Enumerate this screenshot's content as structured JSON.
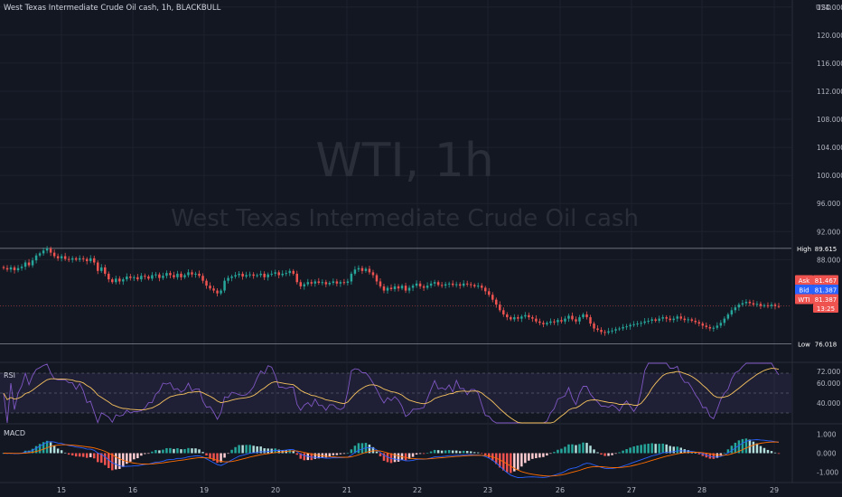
{
  "header": {
    "symbol_name": "West Texas Intermediate Crude Oil cash",
    "interval": "1h",
    "broker": "BLACKBULL",
    "title_full": "West Texas Intermediate Crude Oil cash, 1h, BLACKBULL"
  },
  "watermark": {
    "ticker_interval": "WTI, 1h",
    "name": "West Texas Intermediate Crude Oil cash"
  },
  "currency_label": "USD",
  "panes": {
    "rsi_label": "RSI",
    "macd_label": "MACD"
  },
  "chart_data": {
    "type": "candlestick",
    "x_tick_labels": [
      "15",
      "16",
      "19",
      "20",
      "21",
      "22",
      "23",
      "26",
      "27",
      "28",
      "29"
    ],
    "price_axis": {
      "ticks": [
        124,
        120,
        116,
        112,
        108,
        104,
        100,
        96,
        92,
        88
      ],
      "tick_labels": [
        "124.000",
        "120.000",
        "116.000",
        "112.000",
        "108.000",
        "104.000",
        "100.000",
        "96.000",
        "92.000",
        "88.000"
      ],
      "range": [
        73.5,
        125
      ]
    },
    "price_series": [
      86.8,
      86.6,
      86.9,
      86.5,
      86.8,
      87.0,
      87.6,
      87.2,
      87.9,
      88.6,
      88.9,
      89.3,
      89.6,
      89.0,
      88.5,
      88.2,
      88.5,
      88.1,
      88.0,
      88.2,
      88.0,
      88.2,
      88.1,
      87.8,
      88.2,
      87.6,
      86.4,
      86.9,
      86.0,
      85.2,
      84.8,
      85.3,
      84.9,
      85.2,
      85.6,
      85.4,
      85.5,
      85.2,
      85.7,
      85.6,
      85.3,
      85.8,
      85.9,
      85.4,
      85.7,
      86.1,
      85.8,
      85.5,
      86.0,
      85.5,
      85.8,
      86.2,
      85.9,
      86.0,
      85.7,
      85.0,
      84.3,
      83.9,
      83.6,
      83.2,
      83.6,
      85.0,
      85.4,
      85.6,
      85.8,
      86.0,
      85.6,
      85.8,
      85.9,
      85.7,
      85.8,
      86.0,
      85.5,
      85.9,
      86.0,
      86.2,
      85.8,
      86.0,
      86.1,
      86.4,
      86.0,
      84.8,
      84.2,
      84.5,
      84.8,
      84.6,
      84.9,
      84.7,
      84.8,
      84.5,
      84.7,
      84.9,
      84.6,
      84.8,
      84.7,
      84.9,
      86.0,
      86.6,
      86.8,
      86.4,
      86.7,
      86.2,
      85.8,
      84.9,
      84.2,
      83.6,
      84.0,
      83.8,
      84.2,
      83.9,
      84.3,
      83.6,
      84.0,
      84.3,
      84.6,
      84.2,
      84.0,
      84.3,
      84.6,
      84.8,
      84.4,
      84.3,
      84.5,
      84.6,
      84.4,
      84.5,
      84.3,
      84.6,
      84.5,
      84.4,
      84.2,
      84.3,
      84.0,
      83.5,
      83.0,
      82.3,
      81.6,
      80.8,
      80.2,
      79.8,
      79.5,
      79.8,
      79.6,
      79.9,
      80.1,
      79.8,
      79.6,
      79.2,
      79.0,
      78.8,
      79.0,
      79.2,
      79.1,
      79.4,
      79.2,
      79.6,
      80.0,
      79.5,
      79.2,
      79.8,
      80.2,
      79.8,
      78.9,
      78.2,
      78.0,
      77.7,
      77.6,
      77.8,
      77.9,
      78.1,
      78.2,
      78.4,
      78.5,
      78.7,
      78.8,
      78.9,
      79.0,
      79.2,
      79.3,
      79.5,
      79.3,
      79.6,
      79.8,
      79.6,
      79.4,
      79.6,
      79.9,
      79.6,
      79.4,
      79.5,
      79.3,
      79.1,
      78.9,
      78.6,
      78.4,
      78.2,
      78.3,
      78.6,
      79.0,
      79.6,
      80.2,
      80.8,
      81.2,
      81.6,
      81.8,
      82.0,
      81.8,
      81.6,
      81.7,
      81.4,
      81.5,
      81.4,
      81.6,
      81.4,
      81.387
    ],
    "high_line": {
      "label": "High",
      "value": 89.615,
      "value_text": "89.615"
    },
    "low_line": {
      "label": "Low",
      "value": 76.018,
      "value_text": "76.018"
    },
    "quote_labels": {
      "ask": {
        "label": "Ask",
        "value": 81.467,
        "value_text": "81.467"
      },
      "bid": {
        "label": "Bid",
        "value": 81.387,
        "value_text": "81.387"
      },
      "wti": {
        "label": "WTI",
        "value": 81.387,
        "value_text": "81.387",
        "countdown": "13:25"
      }
    },
    "rsi": {
      "ticks": [
        72,
        60,
        40
      ],
      "tick_labels": [
        "72.000",
        "60.000",
        "40.000"
      ],
      "upper_band": 70,
      "middle_band": 50,
      "lower_band": 30
    },
    "macd": {
      "ticks": [
        1,
        0,
        -1
      ],
      "tick_labels": [
        "1.000",
        "0.000",
        "-1.000"
      ]
    },
    "colors": {
      "up": "#26a69a",
      "down": "#ef5350",
      "rsi_line": "#7e57c2",
      "rsi_ma": "#f7c35f",
      "macd_line": "#2962ff",
      "signal_line": "#ff6d00",
      "background": "#131722"
    }
  }
}
